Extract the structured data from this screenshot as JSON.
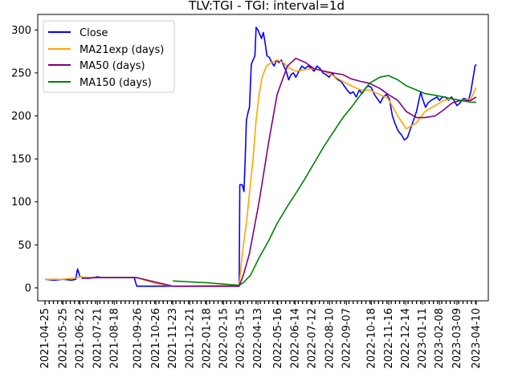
{
  "chart_data": {
    "type": "line",
    "title": "TLV:TGI - TGI: interval=1d",
    "xlabel": "",
    "ylabel": "",
    "grid": false,
    "legend_position": "top-left",
    "ylim": [
      -15,
      318
    ],
    "xlim": [
      "2021-04-13",
      "2023-04-30"
    ],
    "x_ticks": [
      "2021-04-25",
      "2021-05-25",
      "2021-06-22",
      "2021-07-21",
      "2021-08-18",
      "2021-09-26",
      "2021-10-26",
      "2021-11-23",
      "2021-12-21",
      "2022-01-18",
      "2022-02-15",
      "2022-03-15",
      "2022-04-13",
      "2022-05-16",
      "2022-06-14",
      "2022-07-12",
      "2022-08-10",
      "2022-09-07",
      "2022-10-18",
      "2022-11-16",
      "2022-12-14",
      "2023-01-11",
      "2023-02-08",
      "2023-03-09",
      "2023-04-10"
    ],
    "y_ticks": [
      0,
      50,
      100,
      150,
      200,
      250,
      300
    ],
    "series": [
      {
        "name": "Close",
        "color": "#0000ff",
        "points": [
          [
            "2021-04-25",
            10
          ],
          [
            "2021-05-10",
            9
          ],
          [
            "2021-05-25",
            10
          ],
          [
            "2021-06-08",
            9
          ],
          [
            "2021-06-15",
            10
          ],
          [
            "2021-06-18",
            22
          ],
          [
            "2021-06-22",
            13
          ],
          [
            "2021-06-28",
            12
          ],
          [
            "2021-07-05",
            11
          ],
          [
            "2021-07-15",
            12
          ],
          [
            "2021-07-21",
            13
          ],
          [
            "2021-07-28",
            12
          ],
          [
            "2021-08-05",
            12
          ],
          [
            "2021-08-18",
            12
          ],
          [
            "2021-09-01",
            12
          ],
          [
            "2021-09-20",
            12
          ],
          [
            "2021-09-24",
            2
          ],
          [
            "2021-10-26",
            2
          ],
          [
            "2021-11-23",
            2
          ],
          [
            "2022-03-13",
            2
          ],
          [
            "2022-03-14",
            120
          ],
          [
            "2022-03-18",
            120
          ],
          [
            "2022-03-21",
            112
          ],
          [
            "2022-03-23",
            150
          ],
          [
            "2022-03-25",
            195
          ],
          [
            "2022-03-28",
            205
          ],
          [
            "2022-03-30",
            210
          ],
          [
            "2022-04-02",
            260
          ],
          [
            "2022-04-05",
            265
          ],
          [
            "2022-04-08",
            270
          ],
          [
            "2022-04-10",
            303
          ],
          [
            "2022-04-13",
            300
          ],
          [
            "2022-04-16",
            295
          ],
          [
            "2022-04-19",
            290
          ],
          [
            "2022-04-22",
            297
          ],
          [
            "2022-04-25",
            285
          ],
          [
            "2022-04-28",
            270
          ],
          [
            "2022-05-02",
            268
          ],
          [
            "2022-05-06",
            262
          ],
          [
            "2022-05-10",
            258
          ],
          [
            "2022-05-14",
            265
          ],
          [
            "2022-05-18",
            262
          ],
          [
            "2022-05-22",
            265
          ],
          [
            "2022-05-26",
            258
          ],
          [
            "2022-05-30",
            252
          ],
          [
            "2022-06-03",
            242
          ],
          [
            "2022-06-07",
            248
          ],
          [
            "2022-06-11",
            250
          ],
          [
            "2022-06-15",
            245
          ],
          [
            "2022-06-20",
            252
          ],
          [
            "2022-06-25",
            258
          ],
          [
            "2022-06-30",
            255
          ],
          [
            "2022-07-05",
            258
          ],
          [
            "2022-07-10",
            256
          ],
          [
            "2022-07-15",
            252
          ],
          [
            "2022-07-20",
            258
          ],
          [
            "2022-07-25",
            255
          ],
          [
            "2022-07-30",
            250
          ],
          [
            "2022-08-04",
            248
          ],
          [
            "2022-08-09",
            245
          ],
          [
            "2022-08-14",
            250
          ],
          [
            "2022-08-19",
            245
          ],
          [
            "2022-08-24",
            242
          ],
          [
            "2022-08-29",
            240
          ],
          [
            "2022-09-03",
            235
          ],
          [
            "2022-09-08",
            230
          ],
          [
            "2022-09-13",
            226
          ],
          [
            "2022-09-18",
            228
          ],
          [
            "2022-09-23",
            222
          ],
          [
            "2022-09-28",
            230
          ],
          [
            "2022-10-03",
            226
          ],
          [
            "2022-10-08",
            232
          ],
          [
            "2022-10-13",
            235
          ],
          [
            "2022-10-18",
            233
          ],
          [
            "2022-10-23",
            225
          ],
          [
            "2022-10-28",
            220
          ],
          [
            "2022-11-02",
            215
          ],
          [
            "2022-11-07",
            222
          ],
          [
            "2022-11-12",
            225
          ],
          [
            "2022-11-17",
            220
          ],
          [
            "2022-11-22",
            200
          ],
          [
            "2022-11-27",
            190
          ],
          [
            "2022-12-02",
            182
          ],
          [
            "2022-12-07",
            178
          ],
          [
            "2022-12-12",
            172
          ],
          [
            "2022-12-17",
            175
          ],
          [
            "2022-12-22",
            185
          ],
          [
            "2022-12-27",
            195
          ],
          [
            "2023-01-01",
            205
          ],
          [
            "2023-01-04",
            215
          ],
          [
            "2023-01-08",
            228
          ],
          [
            "2023-01-11",
            220
          ],
          [
            "2023-01-16",
            210
          ],
          [
            "2023-01-20",
            215
          ],
          [
            "2023-01-25",
            218
          ],
          [
            "2023-01-30",
            220
          ],
          [
            "2023-02-04",
            222
          ],
          [
            "2023-02-08",
            218
          ],
          [
            "2023-02-13",
            222
          ],
          [
            "2023-02-18",
            222
          ],
          [
            "2023-02-23",
            218
          ],
          [
            "2023-02-28",
            222
          ],
          [
            "2023-03-04",
            218
          ],
          [
            "2023-03-09",
            212
          ],
          [
            "2023-03-14",
            215
          ],
          [
            "2023-03-19",
            220
          ],
          [
            "2023-03-24",
            220
          ],
          [
            "2023-03-28",
            218
          ],
          [
            "2023-04-01",
            228
          ],
          [
            "2023-04-05",
            245
          ],
          [
            "2023-04-08",
            258
          ],
          [
            "2023-04-10",
            260
          ]
        ]
      },
      {
        "name": "MA21exp (days)",
        "color": "#ffa500",
        "points": [
          [
            "2021-04-25",
            10
          ],
          [
            "2021-05-25",
            10
          ],
          [
            "2021-06-18",
            12
          ],
          [
            "2021-06-22",
            13
          ],
          [
            "2021-07-05",
            12
          ],
          [
            "2021-08-18",
            12
          ],
          [
            "2021-09-24",
            12
          ],
          [
            "2021-10-26",
            5
          ],
          [
            "2021-11-23",
            2
          ],
          [
            "2022-03-13",
            3
          ],
          [
            "2022-03-16",
            25
          ],
          [
            "2022-03-20",
            50
          ],
          [
            "2022-03-25",
            75
          ],
          [
            "2022-03-30",
            110
          ],
          [
            "2022-04-05",
            150
          ],
          [
            "2022-04-10",
            195
          ],
          [
            "2022-04-15",
            225
          ],
          [
            "2022-04-20",
            245
          ],
          [
            "2022-04-27",
            258
          ],
          [
            "2022-05-05",
            262
          ],
          [
            "2022-05-15",
            265
          ],
          [
            "2022-05-25",
            262
          ],
          [
            "2022-06-05",
            255
          ],
          [
            "2022-06-15",
            252
          ],
          [
            "2022-07-01",
            254
          ],
          [
            "2022-07-15",
            255
          ],
          [
            "2022-08-01",
            252
          ],
          [
            "2022-08-15",
            247
          ],
          [
            "2022-09-01",
            240
          ],
          [
            "2022-09-15",
            235
          ],
          [
            "2022-10-01",
            230
          ],
          [
            "2022-10-15",
            230
          ],
          [
            "2022-11-01",
            225
          ],
          [
            "2022-11-15",
            220
          ],
          [
            "2022-12-01",
            200
          ],
          [
            "2022-12-15",
            185
          ],
          [
            "2023-01-01",
            192
          ],
          [
            "2023-01-15",
            205
          ],
          [
            "2023-02-01",
            212
          ],
          [
            "2023-02-15",
            218
          ],
          [
            "2023-03-01",
            220
          ],
          [
            "2023-03-15",
            218
          ],
          [
            "2023-04-01",
            220
          ],
          [
            "2023-04-10",
            233
          ]
        ]
      },
      {
        "name": "MA50 (days)",
        "color": "#800080",
        "points": [
          [
            "2021-06-25",
            11
          ],
          [
            "2021-07-20",
            12
          ],
          [
            "2021-08-18",
            12
          ],
          [
            "2021-09-24",
            12
          ],
          [
            "2021-11-23",
            2
          ],
          [
            "2022-03-13",
            2
          ],
          [
            "2022-03-20",
            15
          ],
          [
            "2022-03-30",
            40
          ],
          [
            "2022-04-15",
            100
          ],
          [
            "2022-05-01",
            170
          ],
          [
            "2022-05-15",
            225
          ],
          [
            "2022-06-01",
            258
          ],
          [
            "2022-06-15",
            267
          ],
          [
            "2022-07-01",
            262
          ],
          [
            "2022-07-15",
            255
          ],
          [
            "2022-08-01",
            252
          ],
          [
            "2022-08-15",
            250
          ],
          [
            "2022-09-01",
            248
          ],
          [
            "2022-09-15",
            243
          ],
          [
            "2022-10-01",
            240
          ],
          [
            "2022-10-15",
            238
          ],
          [
            "2022-11-01",
            232
          ],
          [
            "2022-11-15",
            225
          ],
          [
            "2022-12-01",
            218
          ],
          [
            "2022-12-15",
            205
          ],
          [
            "2023-01-01",
            198
          ],
          [
            "2023-01-15",
            198
          ],
          [
            "2023-02-01",
            200
          ],
          [
            "2023-02-15",
            207
          ],
          [
            "2023-03-01",
            215
          ],
          [
            "2023-03-15",
            218
          ],
          [
            "2023-04-01",
            218
          ],
          [
            "2023-04-10",
            222
          ]
        ]
      },
      {
        "name": "MA150 (days)",
        "color": "#008000",
        "points": [
          [
            "2021-11-23",
            8
          ],
          [
            "2022-01-18",
            6
          ],
          [
            "2022-03-13",
            3
          ],
          [
            "2022-03-20",
            6
          ],
          [
            "2022-04-01",
            15
          ],
          [
            "2022-04-15",
            35
          ],
          [
            "2022-05-01",
            55
          ],
          [
            "2022-05-15",
            75
          ],
          [
            "2022-06-01",
            95
          ],
          [
            "2022-06-15",
            110
          ],
          [
            "2022-07-01",
            128
          ],
          [
            "2022-07-15",
            145
          ],
          [
            "2022-08-01",
            165
          ],
          [
            "2022-08-15",
            180
          ],
          [
            "2022-09-01",
            198
          ],
          [
            "2022-09-15",
            210
          ],
          [
            "2022-10-01",
            225
          ],
          [
            "2022-10-15",
            238
          ],
          [
            "2022-11-01",
            245
          ],
          [
            "2022-11-15",
            247
          ],
          [
            "2022-12-01",
            242
          ],
          [
            "2022-12-15",
            235
          ],
          [
            "2023-01-01",
            230
          ],
          [
            "2023-01-15",
            226
          ],
          [
            "2023-02-01",
            224
          ],
          [
            "2023-02-15",
            222
          ],
          [
            "2023-03-01",
            220
          ],
          [
            "2023-03-15",
            218
          ],
          [
            "2023-04-01",
            216
          ],
          [
            "2023-04-10",
            216
          ]
        ]
      }
    ]
  }
}
